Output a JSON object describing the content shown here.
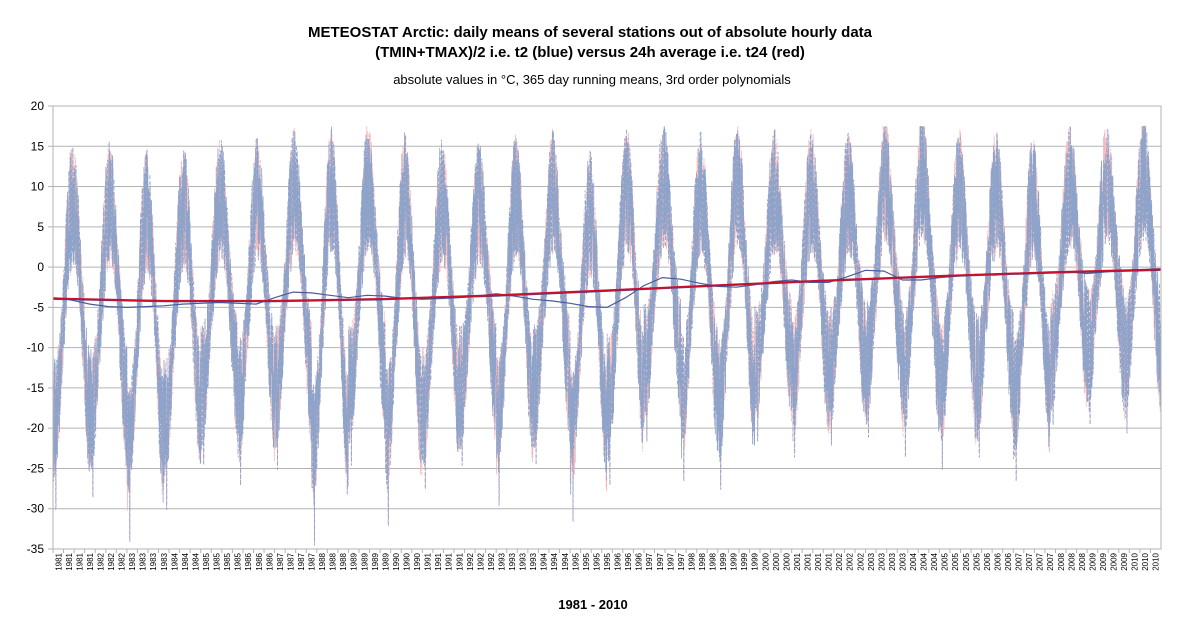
{
  "chart_data": {
    "type": "line",
    "title_line1": "METEOSTAT Arctic: daily means of several stations out of absolute hourly data",
    "title_line2": "(TMIN+TMAX)/2 i.e. t2 (blue) versus 24h average i.e. t24 (red)",
    "subtitle": "absolute  values in °C, 365 day running means, 3rd order polynomials",
    "xlabel": "1981 - 2010",
    "ylabel": "",
    "ylim": [
      -35,
      20
    ],
    "y_ticks": [
      "20",
      "15",
      "10",
      "5",
      "0",
      "-5",
      "-10",
      "-15",
      "-20",
      "-25",
      "-30",
      "-35"
    ],
    "x_ticks": [
      "1981",
      "1981",
      "1981",
      "1981",
      "1982",
      "1982",
      "1982",
      "1983",
      "1983",
      "1983",
      "1983",
      "1984",
      "1984",
      "1984",
      "1985",
      "1985",
      "1985",
      "1985",
      "1986",
      "1986",
      "1986",
      "1987",
      "1987",
      "1987",
      "1987",
      "1988",
      "1988",
      "1988",
      "1989",
      "1989",
      "1989",
      "1989",
      "1990",
      "1990",
      "1990",
      "1991",
      "1991",
      "1991",
      "1991",
      "1992",
      "1992",
      "1992",
      "1993",
      "1993",
      "1993",
      "1993",
      "1994",
      "1994",
      "1994",
      "1995",
      "1995",
      "1995",
      "1995",
      "1996",
      "1996",
      "1996",
      "1997",
      "1997",
      "1997",
      "1997",
      "1998",
      "1998",
      "1998",
      "1999",
      "1999",
      "1999",
      "1999",
      "2000",
      "2000",
      "2000",
      "2001",
      "2001",
      "2001",
      "2001",
      "2002",
      "2002",
      "2002",
      "2003",
      "2003",
      "2003",
      "2003",
      "2004",
      "2004",
      "2004",
      "2005",
      "2005",
      "2005",
      "2005",
      "2006",
      "2006",
      "2006",
      "2007",
      "2007",
      "2007",
      "2007",
      "2008",
      "2008",
      "2008",
      "2009",
      "2009",
      "2009",
      "2009",
      "2010",
      "2010",
      "2010"
    ],
    "x_range": [
      1981.0,
      2011.0
    ],
    "seasonal_peaks": [
      {
        "year": 1981,
        "max": 14.5,
        "min": -29.5
      },
      {
        "year": 1982,
        "max": 14.0,
        "min": -28.0
      },
      {
        "year": 1983,
        "max": 14.0,
        "min": -33.5
      },
      {
        "year": 1984,
        "max": 14.0,
        "min": -29.5
      },
      {
        "year": 1985,
        "max": 14.0,
        "min": -24.0
      },
      {
        "year": 1986,
        "max": 14.5,
        "min": -26.5
      },
      {
        "year": 1987,
        "max": 15.0,
        "min": -24.5
      },
      {
        "year": 1988,
        "max": 17.0,
        "min": -34.0
      },
      {
        "year": 1989,
        "max": 15.5,
        "min": -24.0
      },
      {
        "year": 1990,
        "max": 16.0,
        "min": -31.5
      },
      {
        "year": 1991,
        "max": 14.0,
        "min": -27.0
      },
      {
        "year": 1992,
        "max": 13.0,
        "min": -24.0
      },
      {
        "year": 1993,
        "max": 15.5,
        "min": -29.0
      },
      {
        "year": 1994,
        "max": 14.5,
        "min": -24.0
      },
      {
        "year": 1995,
        "max": 13.0,
        "min": -31.0
      },
      {
        "year": 1996,
        "max": 15.5,
        "min": -26.5
      },
      {
        "year": 1997,
        "max": 15.0,
        "min": -21.0
      },
      {
        "year": 1998,
        "max": 15.0,
        "min": -26.0
      },
      {
        "year": 1999,
        "max": 16.5,
        "min": -27.0
      },
      {
        "year": 2000,
        "max": 14.0,
        "min": -21.0
      },
      {
        "year": 2001,
        "max": 14.5,
        "min": -23.0
      },
      {
        "year": 2002,
        "max": 13.5,
        "min": -21.5
      },
      {
        "year": 2003,
        "max": 15.5,
        "min": -20.5
      },
      {
        "year": 2004,
        "max": 17.0,
        "min": -23.0
      },
      {
        "year": 2005,
        "max": 15.0,
        "min": -24.5
      },
      {
        "year": 2006,
        "max": 14.5,
        "min": -23.0
      },
      {
        "year": 2007,
        "max": 14.0,
        "min": -26.0
      },
      {
        "year": 2008,
        "max": 14.5,
        "min": -19.0
      },
      {
        "year": 2009,
        "max": 15.0,
        "min": -19.0
      },
      {
        "year": 2010,
        "max": 16.0,
        "min": -20.0
      }
    ],
    "series": [
      {
        "name": "t2 (blue)",
        "color": "#8ea3c9",
        "kind": "daily_means",
        "max_offset": 0.4,
        "min_offset": 0.6
      },
      {
        "name": "t24 (red)",
        "color": "#f5b9bd",
        "kind": "daily_means",
        "max_offset": 0.0,
        "min_offset": 0.0
      },
      {
        "name": "t2 365 day running mean",
        "color": "#4a5a9a",
        "kind": "running_mean",
        "x": [
          1981.0,
          1981.3,
          1981.6,
          1982.0,
          1982.5,
          1983.0,
          1983.5,
          1984.0,
          1984.5,
          1985.0,
          1985.5,
          1986.0,
          1986.5,
          1987.0,
          1987.5,
          1988.0,
          1988.5,
          1989.0,
          1989.5,
          1990.0,
          1990.5,
          1991.0,
          1991.5,
          1992.0,
          1992.5,
          1993.0,
          1993.5,
          1994.0,
          1994.5,
          1995.0,
          1995.5,
          1996.0,
          1996.5,
          1997.0,
          1997.5,
          1998.0,
          1998.5,
          1999.0,
          1999.5,
          2000.0,
          2000.5,
          2001.0,
          2001.5,
          2002.0,
          2002.5,
          2003.0,
          2003.5,
          2004.0,
          2004.5,
          2005.0,
          2005.5,
          2006.0,
          2006.5,
          2007.0,
          2007.5,
          2008.0,
          2008.5,
          2009.0,
          2009.5,
          2010.0,
          2010.5,
          2011.0
        ],
        "values": [
          -3.8,
          -3.9,
          -4.2,
          -4.6,
          -4.9,
          -5.0,
          -4.9,
          -4.8,
          -4.6,
          -4.5,
          -4.4,
          -4.5,
          -4.6,
          -3.8,
          -3.1,
          -3.2,
          -3.5,
          -3.8,
          -3.5,
          -3.6,
          -3.9,
          -4.0,
          -3.9,
          -3.8,
          -3.6,
          -3.3,
          -3.6,
          -4.0,
          -4.2,
          -4.5,
          -4.9,
          -5.0,
          -3.8,
          -2.3,
          -1.3,
          -1.5,
          -2.0,
          -2.4,
          -2.5,
          -2.2,
          -1.8,
          -1.6,
          -1.9,
          -1.9,
          -1.2,
          -0.4,
          -0.5,
          -1.6,
          -1.6,
          -1.3,
          -1.1,
          -0.9,
          -1.0,
          -0.8,
          -0.8,
          -0.7,
          -0.6,
          -0.8,
          -0.6,
          -0.4,
          -0.3,
          -0.2
        ]
      },
      {
        "name": "t2 3rd order polynomial",
        "color": "#3d4f8f",
        "kind": "trend",
        "x": [
          1981,
          1984,
          1987,
          1990,
          1993,
          1996,
          1999,
          2002,
          2005,
          2008,
          2011
        ],
        "values": [
          -3.95,
          -4.25,
          -4.25,
          -4.0,
          -3.55,
          -2.95,
          -2.3,
          -1.7,
          -1.15,
          -0.7,
          -0.35
        ]
      },
      {
        "name": "t24 3rd order polynomial",
        "color": "#c8102e",
        "kind": "trend",
        "x": [
          1981,
          1984,
          1987,
          1990,
          1993,
          1996,
          1999,
          2002,
          2005,
          2008,
          2011
        ],
        "values": [
          -3.9,
          -4.2,
          -4.2,
          -3.95,
          -3.5,
          -2.9,
          -2.25,
          -1.65,
          -1.1,
          -0.65,
          -0.3
        ]
      }
    ],
    "grid": true,
    "legend": "none"
  }
}
